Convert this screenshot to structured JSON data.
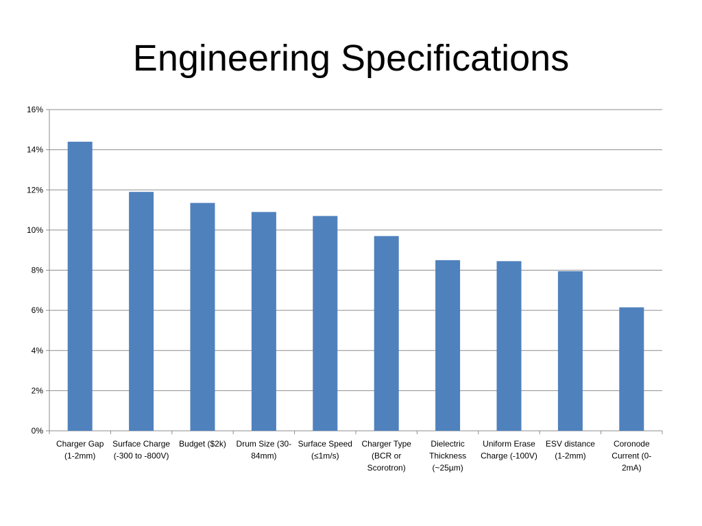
{
  "slide": {
    "title": "Engineering Specifications"
  },
  "colors": {
    "bar": "#4F81BD",
    "grid": "#8C8C8C",
    "axis": "#8C8C8C"
  },
  "chart_data": {
    "type": "bar",
    "title": "",
    "xlabel": "",
    "ylabel": "",
    "ylim": [
      0,
      16
    ],
    "y_tick_step": 2,
    "y_tick_format": "percent",
    "grid": true,
    "legend": "none",
    "categories": [
      [
        "Charger Gap",
        "(1-2mm)"
      ],
      [
        "Surface Charge",
        "(-300 to -800V)"
      ],
      [
        "Budget ($2k)"
      ],
      [
        "Drum Size (30-",
        "84mm)"
      ],
      [
        "Surface Speed",
        "(≤1m/s)"
      ],
      [
        "Charger Type",
        "(BCR or",
        "Scorotron)"
      ],
      [
        "Dielectric",
        "Thickness",
        "(~25µm)"
      ],
      [
        "Uniform Erase",
        "Charge (-100V)"
      ],
      [
        "ESV distance",
        "(1-2mm)"
      ],
      [
        "Coronode",
        "Current (0-",
        "2mA)"
      ]
    ],
    "values": [
      14.4,
      11.9,
      11.35,
      10.9,
      10.7,
      9.7,
      8.5,
      8.45,
      7.95,
      6.15
    ]
  }
}
